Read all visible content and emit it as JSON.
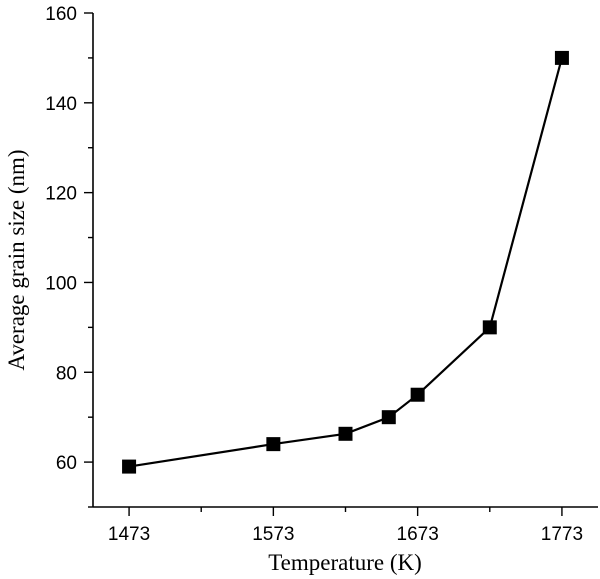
{
  "chart_data": {
    "type": "line",
    "title": "",
    "xlabel": "Temperature (K)",
    "ylabel": "Average grain size (nm)",
    "xlim": [
      1448,
      1798
    ],
    "ylim": [
      50,
      160
    ],
    "x_ticks": [
      1473,
      1573,
      1673,
      1773
    ],
    "y_ticks": [
      60,
      80,
      100,
      120,
      140,
      160
    ],
    "x_minor_ticks": [
      1523,
      1623,
      1723
    ],
    "y_minor_ticks": [
      50,
      70,
      90,
      110,
      130,
      150
    ],
    "grid": false,
    "legend": "none",
    "marker": "square",
    "color": "#000000",
    "series": [
      {
        "x": [
          1473,
          1573,
          1623,
          1653,
          1673,
          1723,
          1773
        ],
        "y": [
          59,
          64,
          66.3,
          70,
          75,
          90,
          150
        ]
      }
    ]
  }
}
